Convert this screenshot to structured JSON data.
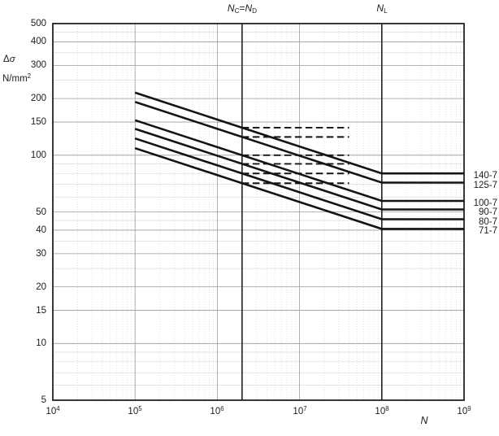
{
  "chart_data": {
    "type": "line",
    "title": "",
    "x_axis": {
      "label": "*N*",
      "scale": "log",
      "range": [
        10000,
        1000000000
      ],
      "ticks": [
        {
          "value": 10000,
          "label": "10^[4]"
        },
        {
          "value": 100000,
          "label": "10^[5]"
        },
        {
          "value": 1000000,
          "label": "10^[6]"
        },
        {
          "value": 10000000,
          "label": "10^[7]"
        },
        {
          "value": 100000000,
          "label": "10^[8]"
        },
        {
          "value": 1000000000,
          "label": "10^[9]"
        }
      ],
      "major_gridlines": [
        100000,
        1000000,
        10000000,
        100000000
      ]
    },
    "y_axis": {
      "label_line1": "Δ*σ*",
      "label_line2": "N/mm^[2]",
      "scale": "log",
      "range": [
        5,
        500
      ],
      "ticks": [
        500,
        400,
        300,
        200,
        150,
        100,
        50,
        40,
        30,
        20,
        15,
        10,
        5
      ],
      "minor_gridlines": [
        6,
        7,
        8,
        9,
        25,
        35,
        45,
        60,
        70,
        80,
        90,
        250,
        350,
        450
      ]
    },
    "reference_lines": [
      {
        "label": "*N*_[C]=*N*_[D]",
        "value": 2000000
      },
      {
        "label": "*N*_[L]",
        "value": 100000000
      }
    ],
    "series": [
      {
        "label": "140-7",
        "points": [
          [
            100000,
            214.8
          ],
          [
            100000000,
            80.0
          ],
          [
            1000000000,
            80.0
          ]
        ]
      },
      {
        "label": "125-7",
        "points": [
          [
            100000,
            191.8
          ],
          [
            100000000,
            71.5
          ],
          [
            1000000000,
            71.5
          ]
        ]
      },
      {
        "label": "100-7",
        "points": [
          [
            100000,
            153.4
          ],
          [
            100000000,
            57.2
          ],
          [
            1000000000,
            57.2
          ]
        ]
      },
      {
        "label": "90-7",
        "points": [
          [
            100000,
            138.1
          ],
          [
            100000000,
            51.5
          ],
          [
            1000000000,
            51.5
          ]
        ]
      },
      {
        "label": "80-7",
        "points": [
          [
            100000,
            122.7
          ],
          [
            100000000,
            45.7
          ],
          [
            1000000000,
            45.7
          ]
        ]
      },
      {
        "label": "71-7",
        "points": [
          [
            100000,
            108.9
          ],
          [
            100000000,
            40.6
          ],
          [
            1000000000,
            40.6
          ]
        ]
      }
    ],
    "dashed_levels": [
      {
        "value": 140,
        "from": 2000000,
        "to": 40000000
      },
      {
        "value": 125,
        "from": 2000000,
        "to": 40000000
      },
      {
        "value": 100,
        "from": 2000000,
        "to": 40000000
      },
      {
        "value": 90,
        "from": 2000000,
        "to": 40000000
      },
      {
        "value": 80,
        "from": 2000000,
        "to": 40000000
      },
      {
        "value": 71,
        "from": 2000000,
        "to": 40000000
      }
    ],
    "colors": {
      "curve": "#141414",
      "frame": "#222222",
      "reference_line": "#222222",
      "grid_major": "#9b9b9b",
      "grid_minor": "#d4d4d4",
      "text": "#1c1c1c"
    },
    "legend_position": "right-of-plot"
  }
}
